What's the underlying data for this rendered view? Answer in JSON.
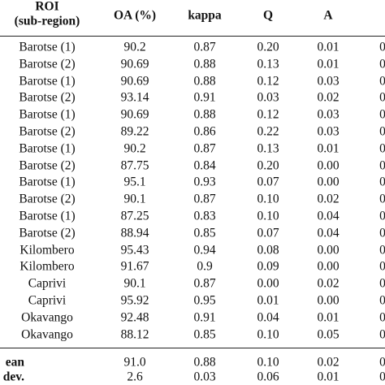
{
  "table": {
    "header": {
      "roi": [
        "ROI",
        "(sub-region)"
      ],
      "columns": [
        "OA (%)",
        "kappa",
        "Q",
        "A"
      ]
    },
    "rows": [
      [
        "Barotse (1)",
        "90.2",
        "0.87",
        "0.20",
        "0.01",
        "0"
      ],
      [
        "Barotse (2)",
        "90.69",
        "0.88",
        "0.13",
        "0.01",
        "0"
      ],
      [
        "Barotse (1)",
        "90.69",
        "0.88",
        "0.12",
        "0.03",
        "0"
      ],
      [
        "Barotse (2)",
        "93.14",
        "0.91",
        "0.03",
        "0.02",
        "0"
      ],
      [
        "Barotse (1)",
        "90.69",
        "0.88",
        "0.12",
        "0.03",
        "0"
      ],
      [
        "Barotse (2)",
        "89.22",
        "0.86",
        "0.22",
        "0.03",
        "0"
      ],
      [
        "Barotse (1)",
        "90.2",
        "0.87",
        "0.13",
        "0.01",
        "0"
      ],
      [
        "Barotse (2)",
        "87.75",
        "0.84",
        "0.20",
        "0.00",
        "0"
      ],
      [
        "Barotse (1)",
        "95.1",
        "0.93",
        "0.07",
        "0.00",
        "0"
      ],
      [
        "Barotse (2)",
        "90.1",
        "0.87",
        "0.10",
        "0.02",
        "0"
      ],
      [
        "Barotse (1)",
        "87.25",
        "0.83",
        "0.10",
        "0.04",
        "0"
      ],
      [
        "Barotse (2)",
        "88.94",
        "0.85",
        "0.07",
        "0.04",
        "0"
      ],
      [
        "Kilombero",
        "95.43",
        "0.94",
        "0.08",
        "0.00",
        "0"
      ],
      [
        "Kilombero",
        "91.67",
        "0.9",
        "0.09",
        "0.00",
        "0"
      ],
      [
        "Caprivi",
        "90.1",
        "0.87",
        "0.00",
        "0.02",
        "0"
      ],
      [
        "Caprivi",
        "95.92",
        "0.95",
        "0.01",
        "0.00",
        "0"
      ],
      [
        "Okavango",
        "92.48",
        "0.91",
        "0.04",
        "0.01",
        "0"
      ],
      [
        "Okavango",
        "88.12",
        "0.85",
        "0.10",
        "0.05",
        "0"
      ]
    ],
    "summary": [
      [
        "ean",
        "91.0",
        "0.88",
        "0.10",
        "0.02",
        "0"
      ],
      [
        ". dev.",
        "2.6",
        "0.03",
        "0.06",
        "0.01",
        "0"
      ]
    ]
  }
}
